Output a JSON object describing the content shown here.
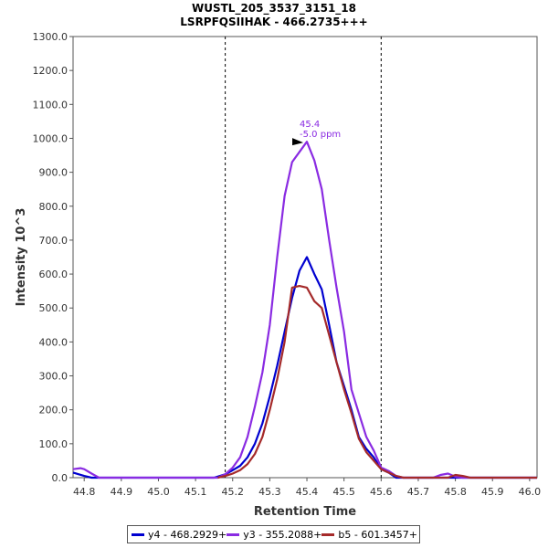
{
  "chart_data": {
    "type": "line",
    "title": "WUSTL_205_3537_3151_18",
    "subtitle": "LSRPFQSIIHAK - 466.2735+++",
    "xlabel": "Retention Time",
    "ylabel": "Intensity 10^3",
    "xlim": [
      44.77,
      46.02
    ],
    "ylim": [
      0,
      1300
    ],
    "x_ticks": [
      "44.8",
      "44.9",
      "45.0",
      "45.1",
      "45.2",
      "45.3",
      "45.4",
      "45.5",
      "45.6",
      "45.7",
      "45.8",
      "45.9",
      "46.0"
    ],
    "y_ticks": [
      "0.0",
      "100.0",
      "200.0",
      "300.0",
      "400.0",
      "500.0",
      "600.0",
      "700.0",
      "800.0",
      "900.0",
      "1000.0",
      "1100.0",
      "1200.0",
      "1300.0"
    ],
    "grid": false,
    "boundary_lines": [
      45.18,
      45.6
    ],
    "legend_position": "bottom",
    "annotation": {
      "x": 45.4,
      "y": 990,
      "label_line1": "45.4",
      "label_line2": "-5.0 ppm",
      "color": "#8A2BE2"
    },
    "series": [
      {
        "name": "y4 - 468.2929+",
        "color": "#0000D0",
        "points": [
          [
            44.77,
            15
          ],
          [
            44.8,
            5
          ],
          [
            44.82,
            0
          ],
          [
            45.0,
            0
          ],
          [
            45.15,
            0
          ],
          [
            45.18,
            10
          ],
          [
            45.2,
            22
          ],
          [
            45.22,
            35
          ],
          [
            45.24,
            60
          ],
          [
            45.26,
            100
          ],
          [
            45.28,
            160
          ],
          [
            45.3,
            240
          ],
          [
            45.32,
            330
          ],
          [
            45.34,
            430
          ],
          [
            45.36,
            530
          ],
          [
            45.38,
            610
          ],
          [
            45.4,
            650
          ],
          [
            45.42,
            600
          ],
          [
            45.44,
            555
          ],
          [
            45.46,
            450
          ],
          [
            45.48,
            340
          ],
          [
            45.5,
            270
          ],
          [
            45.52,
            200
          ],
          [
            45.54,
            120
          ],
          [
            45.56,
            85
          ],
          [
            45.58,
            60
          ],
          [
            45.6,
            25
          ],
          [
            45.62,
            15
          ],
          [
            45.64,
            0
          ],
          [
            45.8,
            0
          ],
          [
            46.02,
            0
          ]
        ]
      },
      {
        "name": "y3 - 355.2088+",
        "color": "#8A2BE2",
        "points": [
          [
            44.77,
            25
          ],
          [
            44.79,
            28
          ],
          [
            44.8,
            25
          ],
          [
            44.82,
            12
          ],
          [
            44.84,
            0
          ],
          [
            45.1,
            0
          ],
          [
            45.16,
            0
          ],
          [
            45.18,
            10
          ],
          [
            45.2,
            30
          ],
          [
            45.22,
            60
          ],
          [
            45.24,
            120
          ],
          [
            45.26,
            210
          ],
          [
            45.28,
            310
          ],
          [
            45.3,
            450
          ],
          [
            45.32,
            650
          ],
          [
            45.34,
            830
          ],
          [
            45.36,
            930
          ],
          [
            45.38,
            960
          ],
          [
            45.4,
            990
          ],
          [
            45.42,
            935
          ],
          [
            45.44,
            850
          ],
          [
            45.46,
            700
          ],
          [
            45.48,
            560
          ],
          [
            45.5,
            430
          ],
          [
            45.52,
            260
          ],
          [
            45.54,
            190
          ],
          [
            45.56,
            120
          ],
          [
            45.58,
            80
          ],
          [
            45.6,
            30
          ],
          [
            45.62,
            20
          ],
          [
            45.64,
            5
          ],
          [
            45.66,
            0
          ],
          [
            45.74,
            0
          ],
          [
            45.76,
            8
          ],
          [
            45.78,
            12
          ],
          [
            45.8,
            3
          ],
          [
            45.82,
            0
          ],
          [
            46.02,
            0
          ]
        ]
      },
      {
        "name": "b5 - 601.3457+",
        "color": "#A52A2A",
        "points": [
          [
            45.16,
            0
          ],
          [
            45.18,
            5
          ],
          [
            45.2,
            12
          ],
          [
            45.22,
            22
          ],
          [
            45.24,
            40
          ],
          [
            45.26,
            70
          ],
          [
            45.28,
            120
          ],
          [
            45.3,
            200
          ],
          [
            45.32,
            290
          ],
          [
            45.34,
            400
          ],
          [
            45.36,
            560
          ],
          [
            45.38,
            565
          ],
          [
            45.4,
            560
          ],
          [
            45.42,
            520
          ],
          [
            45.44,
            500
          ],
          [
            45.46,
            420
          ],
          [
            45.48,
            340
          ],
          [
            45.5,
            260
          ],
          [
            45.52,
            190
          ],
          [
            45.54,
            115
          ],
          [
            45.56,
            75
          ],
          [
            45.58,
            50
          ],
          [
            45.6,
            25
          ],
          [
            45.62,
            15
          ],
          [
            45.64,
            5
          ],
          [
            45.66,
            0
          ],
          [
            45.78,
            0
          ],
          [
            45.8,
            8
          ],
          [
            45.82,
            5
          ],
          [
            45.84,
            0
          ],
          [
            46.02,
            0
          ]
        ]
      }
    ]
  }
}
